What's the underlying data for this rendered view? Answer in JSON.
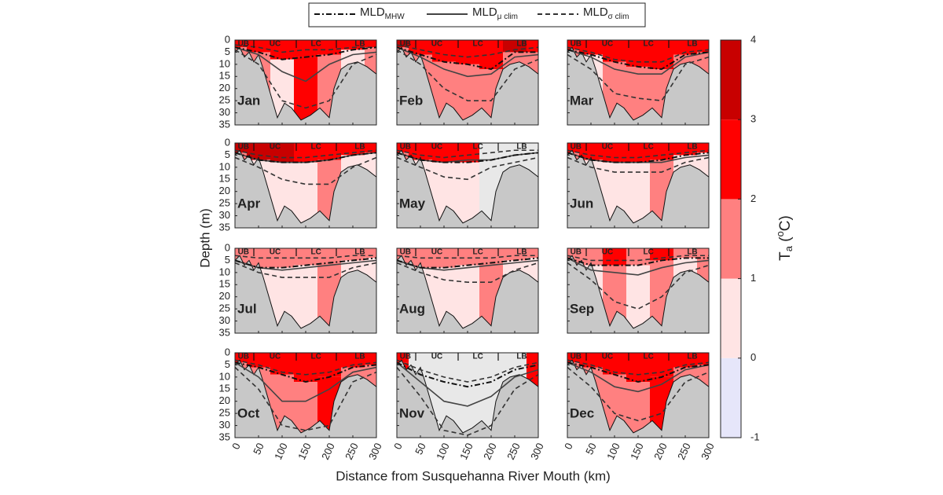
{
  "chart_data": {
    "type": "contour-panels",
    "legend": [
      {
        "text": "MLD",
        "sub": "MHW",
        "dash": "7 3 2 3",
        "color": "#111111"
      },
      {
        "text": "MLD",
        "sub": "μ clim",
        "dash": "none",
        "color": "#444444"
      },
      {
        "text": "MLD",
        "sub": "σ clim",
        "dash": "6 4",
        "color": "#333333"
      }
    ],
    "ylabel": "Depth (m)",
    "xlabel": "Distance from Susquehanna River Mouth (km)",
    "xlim": [
      0,
      300
    ],
    "xticks": [
      0,
      50,
      100,
      150,
      200,
      250,
      300
    ],
    "ylim": [
      0,
      35
    ],
    "yticks": [
      0,
      5,
      10,
      15,
      20,
      25,
      30,
      35
    ],
    "regions": [
      "UB",
      "UC",
      "LC",
      "LB"
    ],
    "x": [
      0,
      50,
      100,
      150,
      200,
      250,
      300
    ],
    "bathymetry": {
      "x": [
        0,
        10,
        20,
        30,
        40,
        50,
        60,
        75,
        90,
        105,
        120,
        140,
        160,
        180,
        200,
        210,
        225,
        240,
        260,
        280,
        300
      ],
      "depth": [
        5,
        3,
        7,
        5,
        9,
        6,
        12,
        22,
        32,
        26,
        28,
        33,
        31,
        28,
        32,
        20,
        12,
        10,
        9,
        11,
        14
      ],
      "color": "#c8c8c8"
    },
    "nodata_color": "#e8e8e8",
    "colorbar": {
      "levels": [
        -1,
        0,
        1,
        2,
        3,
        4
      ],
      "colors": [
        "#e6e6fa",
        "#ffe4e4",
        "#ff8080",
        "#ff0000",
        "#c80000"
      ],
      "label": {
        "text": "T",
        "sub": "a",
        "open": " (",
        "sup": "o",
        "close": "C)"
      }
    },
    "panels": [
      {
        "name": "Jan",
        "surface": [
          2.5,
          2.5,
          2.5,
          2.5,
          2.5,
          2.5,
          2.5
        ],
        "deep": [
          1.5,
          1.5,
          0.5,
          2.5,
          1.5,
          0.5,
          1.5
        ],
        "mhw": [
          3,
          5,
          8,
          7,
          6,
          4,
          3
        ],
        "mu": [
          3,
          6,
          13,
          17,
          10,
          6,
          5
        ],
        "sigma_lo": [
          2,
          3,
          5,
          4,
          4,
          3,
          3
        ],
        "sigma_hi": [
          4,
          10,
          25,
          28,
          25,
          10,
          6
        ]
      },
      {
        "name": "Feb",
        "surface": [
          3.5,
          2.5,
          2.5,
          2.5,
          2.5,
          3.5,
          2.5
        ],
        "deep": [
          1.5,
          1.5,
          1.5,
          1.5,
          1.5,
          1.5,
          1.5
        ],
        "mhw": [
          3,
          6,
          9,
          10,
          12,
          5,
          5
        ],
        "mu": [
          3,
          7,
          12,
          15,
          14,
          7,
          6
        ],
        "sigma_lo": [
          2,
          4,
          6,
          7,
          6,
          4,
          3
        ],
        "sigma_hi": [
          4,
          10,
          20,
          25,
          25,
          12,
          8
        ]
      },
      {
        "name": "Mar",
        "surface": [
          2.5,
          2.5,
          2.5,
          2.5,
          2.5,
          2.5,
          2.5
        ],
        "deep": [
          1.5,
          0.5,
          1.5,
          1.5,
          1.5,
          1.5,
          1.5
        ],
        "mhw": [
          4,
          6,
          9,
          11,
          12,
          6,
          5
        ],
        "mu": [
          4,
          7,
          12,
          14,
          14,
          7,
          5
        ],
        "sigma_lo": [
          3,
          5,
          8,
          9,
          9,
          5,
          4
        ],
        "sigma_hi": [
          6,
          12,
          22,
          24,
          25,
          10,
          7
        ]
      },
      {
        "name": "Apr",
        "surface": [
          3.5,
          3.5,
          3.5,
          2.5,
          2.5,
          2.5,
          2.5
        ],
        "deep": [
          1.5,
          0.5,
          0.5,
          0.5,
          1.5,
          0.5,
          0.5
        ],
        "mhw": [
          4,
          7,
          8,
          8,
          7,
          5,
          4
        ],
        "mu": [
          4,
          7,
          8,
          8,
          7,
          5,
          4
        ],
        "sigma_lo": [
          3,
          5,
          6,
          6,
          5,
          4,
          3
        ],
        "sigma_hi": [
          6,
          10,
          15,
          17,
          17,
          10,
          6
        ]
      },
      {
        "name": "May",
        "surface": [
          2.5,
          2.5,
          2.5,
          2.5,
          null,
          null,
          null
        ],
        "deep": [
          1.5,
          0.5,
          0.5,
          0.5,
          null,
          null,
          null
        ],
        "mhw": [
          4,
          7,
          8,
          8,
          7,
          5,
          4
        ],
        "mu": [
          4,
          7,
          8,
          7,
          7,
          5,
          4
        ],
        "sigma_lo": [
          3,
          5,
          6,
          5,
          4,
          3,
          3
        ],
        "sigma_hi": [
          6,
          10,
          14,
          15,
          10,
          8,
          6
        ]
      },
      {
        "name": "Jun",
        "surface": [
          2.5,
          2.5,
          2.5,
          2.5,
          2.5,
          2.5,
          2.5
        ],
        "deep": [
          1.5,
          0.5,
          0.5,
          0.5,
          1.5,
          0.5,
          0.5
        ],
        "mhw": [
          4,
          7,
          8,
          8,
          7,
          5,
          4
        ],
        "mu": [
          4,
          7,
          8,
          8,
          8,
          6,
          5
        ],
        "sigma_lo": [
          3,
          5,
          6,
          6,
          5,
          4,
          3
        ],
        "sigma_hi": [
          6,
          10,
          12,
          12,
          12,
          8,
          6
        ]
      },
      {
        "name": "Jul",
        "surface": [
          1.5,
          1.5,
          1.5,
          1.5,
          1.5,
          1.5,
          1.5
        ],
        "deep": [
          1.5,
          0.5,
          0.5,
          0.5,
          1.5,
          0.5,
          0.5
        ],
        "mhw": [
          5,
          8,
          8,
          7,
          6,
          5,
          4
        ],
        "mu": [
          5,
          8,
          9,
          8,
          7,
          6,
          5
        ],
        "sigma_lo": [
          3,
          4,
          4,
          4,
          4,
          3,
          3
        ],
        "sigma_hi": [
          6,
          10,
          12,
          12,
          12,
          8,
          6
        ]
      },
      {
        "name": "Aug",
        "surface": [
          1.5,
          1.5,
          1.5,
          1.5,
          1.5,
          1.5,
          1.5
        ],
        "deep": [
          1.5,
          0.5,
          0.5,
          0.5,
          1.5,
          0.5,
          0.5
        ],
        "mhw": [
          5,
          8,
          8,
          7,
          6,
          5,
          4
        ],
        "mu": [
          5,
          8,
          9,
          8,
          7,
          6,
          5
        ],
        "sigma_lo": [
          3,
          4,
          4,
          4,
          4,
          3,
          3
        ],
        "sigma_hi": [
          6,
          10,
          13,
          14,
          14,
          9,
          6
        ]
      },
      {
        "name": "Sep",
        "surface": [
          1.5,
          1.5,
          2.5,
          1.5,
          2.5,
          1.5,
          1.5
        ],
        "deep": [
          1.5,
          0.5,
          1.5,
          0.5,
          1.5,
          0.5,
          1.5
        ],
        "mhw": [
          4,
          7,
          7,
          7,
          5,
          4,
          4
        ],
        "mu": [
          4,
          9,
          10,
          11,
          8,
          6,
          5
        ],
        "sigma_lo": [
          3,
          5,
          5,
          5,
          4,
          3,
          3
        ],
        "sigma_hi": [
          6,
          13,
          22,
          25,
          20,
          10,
          7
        ]
      },
      {
        "name": "Oct",
        "surface": [
          2.5,
          2.5,
          2.5,
          2.5,
          2.5,
          2.5,
          2.5
        ],
        "deep": [
          1.5,
          1.5,
          1.5,
          1.5,
          2.5,
          1.5,
          1.5
        ],
        "mhw": [
          4,
          6,
          9,
          12,
          10,
          6,
          5
        ],
        "mu": [
          4,
          10,
          20,
          20,
          15,
          8,
          6
        ],
        "sigma_lo": [
          3,
          5,
          8,
          9,
          8,
          5,
          4
        ],
        "sigma_hi": [
          6,
          15,
          30,
          32,
          30,
          12,
          8
        ]
      },
      {
        "name": "Nov",
        "surface": [
          2.5,
          null,
          null,
          null,
          null,
          null,
          2.5
        ],
        "deep": [
          2.5,
          null,
          null,
          null,
          null,
          null,
          2.5
        ],
        "mhw": [
          4,
          9,
          12,
          14,
          12,
          7,
          5
        ],
        "mu": [
          4,
          12,
          20,
          22,
          18,
          10,
          7
        ],
        "sigma_lo": [
          3,
          7,
          10,
          12,
          10,
          6,
          4
        ],
        "sigma_hi": [
          6,
          18,
          32,
          34,
          30,
          15,
          9
        ]
      },
      {
        "name": "Dec",
        "surface": [
          2.5,
          2.5,
          2.5,
          2.5,
          2.5,
          2.5,
          2.5
        ],
        "deep": [
          1.5,
          1.5,
          1.5,
          1.5,
          2.5,
          1.5,
          1.5
        ],
        "mhw": [
          4,
          6,
          9,
          12,
          10,
          6,
          5
        ],
        "mu": [
          4,
          8,
          14,
          16,
          13,
          7,
          5
        ],
        "sigma_lo": [
          3,
          5,
          8,
          9,
          8,
          5,
          4
        ],
        "sigma_hi": [
          6,
          14,
          25,
          28,
          25,
          12,
          8
        ]
      }
    ]
  }
}
